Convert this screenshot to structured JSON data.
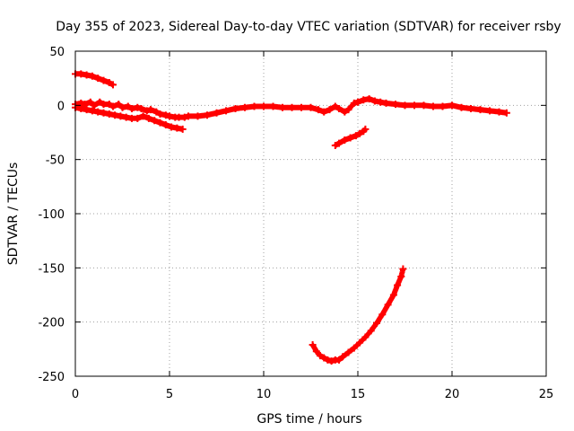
{
  "chart_data": {
    "type": "scatter",
    "title": "Day 355 of 2023, Sidereal Day-to-day VTEC variation (SDTVAR) for receiver rsby",
    "xlabel": "GPS time / hours",
    "ylabel": "SDTVAR / TECUs",
    "xlim": [
      0,
      25
    ],
    "ylim": [
      -250,
      50
    ],
    "xticks": [
      0,
      5,
      10,
      15,
      20,
      25
    ],
    "yticks": [
      50,
      0,
      -50,
      -100,
      -150,
      -200,
      -250
    ],
    "grid": true,
    "marker": "plus",
    "series": [
      {
        "name": "upper-start",
        "color": "#ff0000",
        "x": [
          0.0,
          0.3,
          0.6,
          0.9,
          1.2,
          1.5,
          1.8,
          2.0
        ],
        "y": [
          29,
          29,
          28,
          27,
          25,
          23,
          21,
          19
        ]
      },
      {
        "name": "main-band",
        "color": "#ff0000",
        "x": [
          0.0,
          0.3,
          0.5,
          0.8,
          1.0,
          1.3,
          1.5,
          1.8,
          2.0,
          2.3,
          2.5,
          2.8,
          3.0,
          3.3,
          3.5,
          3.8,
          4.0,
          4.3,
          4.5,
          4.8,
          5.0,
          5.3,
          5.5,
          5.8,
          6.0,
          6.5,
          7.0,
          7.5,
          8.0,
          8.5,
          9.0,
          9.5,
          10.0,
          10.5,
          11.0,
          11.5,
          12.0,
          12.5,
          12.9,
          13.2,
          13.5,
          13.8,
          14.0,
          14.3,
          14.5,
          14.8,
          15.0,
          15.3,
          15.6,
          15.9,
          16.2,
          16.5,
          17.0,
          17.5,
          18.0,
          18.5,
          19.0,
          19.5,
          20.0,
          20.5,
          21.0,
          21.5,
          22.0,
          22.5,
          22.9
        ],
        "y": [
          1,
          2,
          1,
          3,
          0,
          3,
          1,
          1,
          -1,
          1,
          -2,
          -1,
          -3,
          -2,
          -3,
          -5,
          -4,
          -6,
          -8,
          -9,
          -10,
          -11,
          -11,
          -11,
          -10,
          -10,
          -9,
          -7,
          -5,
          -3,
          -2,
          -1,
          -1,
          -1,
          -2,
          -2,
          -2,
          -2,
          -4,
          -6,
          -4,
          -1,
          -3,
          -6,
          -4,
          2,
          3,
          5,
          6,
          4,
          3,
          2,
          1,
          0,
          0,
          0,
          -1,
          -1,
          0,
          -2,
          -3,
          -4,
          -5,
          -6,
          -7
        ]
      },
      {
        "name": "lower-branch",
        "color": "#ff0000",
        "x": [
          0.0,
          0.3,
          0.6,
          0.9,
          1.2,
          1.5,
          1.8,
          2.1,
          2.4,
          2.7,
          3.0,
          3.3,
          3.6,
          3.9,
          4.2,
          4.5,
          4.8,
          5.1,
          5.4,
          5.7
        ],
        "y": [
          -2,
          -3,
          -4,
          -5,
          -6,
          -7,
          -8,
          -9,
          -10,
          -11,
          -12,
          -12,
          -10,
          -12,
          -14,
          -16,
          -18,
          -20,
          -21,
          -22
        ]
      },
      {
        "name": "mid-dip",
        "color": "#ff0000",
        "x": [
          13.8,
          14.0,
          14.3,
          14.6,
          14.9,
          15.1,
          15.3,
          15.4
        ],
        "y": [
          -37,
          -35,
          -32,
          -30,
          -28,
          -26,
          -24,
          -22
        ]
      },
      {
        "name": "deep-trough",
        "color": "#ff0000",
        "x": [
          12.6,
          12.8,
          13.0,
          13.2,
          13.4,
          13.6,
          13.8,
          14.0,
          14.2,
          14.5,
          14.8,
          15.1,
          15.4,
          15.7,
          16.0,
          16.3,
          16.6,
          16.9,
          17.1,
          17.3,
          17.4
        ],
        "y": [
          -221,
          -227,
          -231,
          -233,
          -235,
          -236,
          -235,
          -235,
          -232,
          -228,
          -224,
          -219,
          -214,
          -208,
          -201,
          -193,
          -184,
          -175,
          -166,
          -158,
          -151
        ]
      }
    ]
  }
}
